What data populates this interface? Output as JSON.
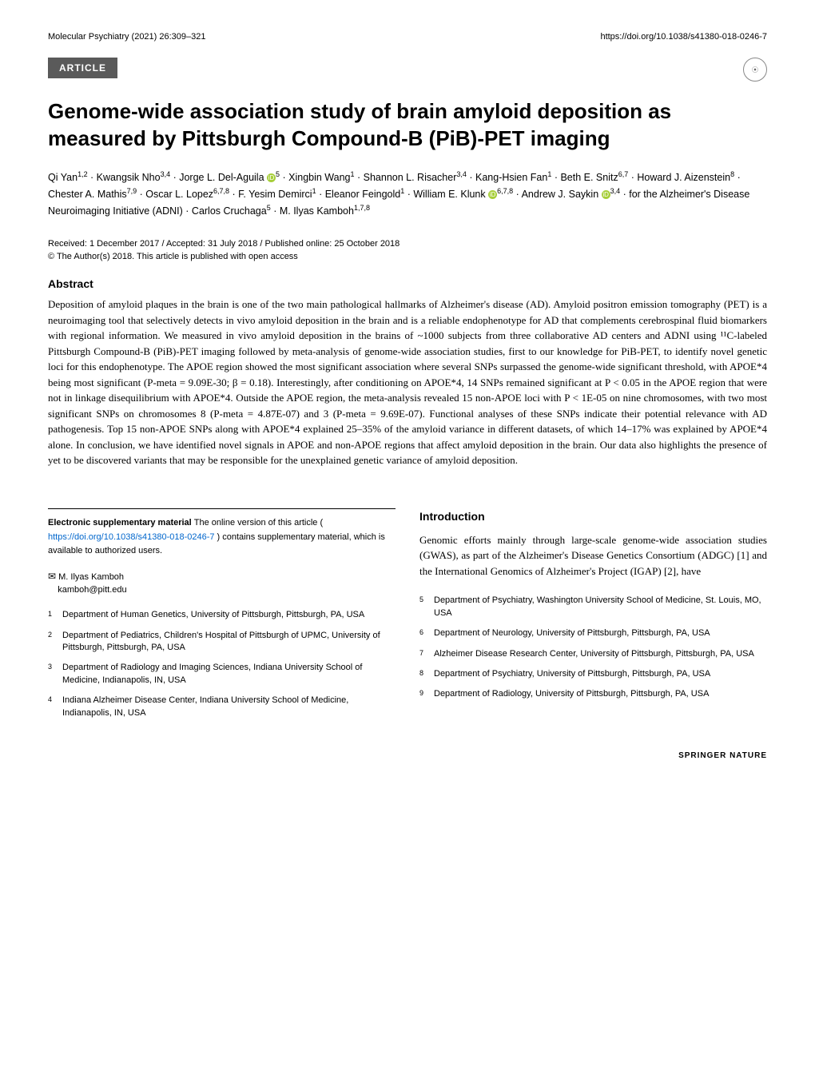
{
  "header": {
    "journal": "Molecular Psychiatry (2021) 26:309–321",
    "doi": "https://doi.org/10.1038/s41380-018-0246-7"
  },
  "article_label": "ARTICLE",
  "check_badge": "Check for updates",
  "title": "Genome-wide association study of brain amyloid deposition as measured by Pittsburgh Compound-B (PiB)-PET imaging",
  "authors_html": "Qi Yan<sup>1,2</sup> · Kwangsik Nho<sup>3,4</sup> · Jorge L. Del-Aguila ⓘ<sup>5</sup> · Xingbin Wang<sup>1</sup> · Shannon L. Risacher<sup>3,4</sup> · Kang-Hsien Fan<sup>1</sup> · Beth E. Snitz<sup>6,7</sup> · Howard J. Aizenstein<sup>8</sup> · Chester A. Mathis<sup>7,9</sup> · Oscar L. Lopez<sup>6,7,8</sup> · F. Yesim Demirci<sup>1</sup> · Eleanor Feingold<sup>1</sup> · William E. Klunk ⓘ<sup>6,7,8</sup> · Andrew J. Saykin ⓘ<sup>3,4</sup> · for the Alzheimer's Disease Neuroimaging Initiative (ADNI) · Carlos Cruchaga<sup>5</sup> · M. Ilyas Kamboh<sup>1,7,8</sup>",
  "received": "Received: 1 December 2017 / Accepted: 31 July 2018 / Published online: 25 October 2018",
  "copyright": "© The Author(s) 2018. This article is published with open access",
  "abstract_heading": "Abstract",
  "abstract": "Deposition of amyloid plaques in the brain is one of the two main pathological hallmarks of Alzheimer's disease (AD). Amyloid positron emission tomography (PET) is a neuroimaging tool that selectively detects in vivo amyloid deposition in the brain and is a reliable endophenotype for AD that complements cerebrospinal fluid biomarkers with regional information. We measured in vivo amyloid deposition in the brains of ~1000 subjects from three collaborative AD centers and ADNI using ¹¹C-labeled Pittsburgh Compound-B (PiB)-PET imaging followed by meta-analysis of genome-wide association studies, first to our knowledge for PiB-PET, to identify novel genetic loci for this endophenotype. The APOE region showed the most significant association where several SNPs surpassed the genome-wide significant threshold, with APOE*4 being most significant (P-meta = 9.09E-30; β = 0.18). Interestingly, after conditioning on APOE*4, 14 SNPs remained significant at P < 0.05 in the APOE region that were not in linkage disequilibrium with APOE*4. Outside the APOE region, the meta-analysis revealed 15 non-APOE loci with P < 1E-05 on nine chromosomes, with two most significant SNPs on chromosomes 8 (P-meta = 4.87E-07) and 3 (P-meta = 9.69E-07). Functional analyses of these SNPs indicate their potential relevance with AD pathogenesis. Top 15 non-APOE SNPs along with APOE*4 explained 25–35% of the amyloid variance in different datasets, of which 14–17% was explained by APOE*4 alone. In conclusion, we have identified novel signals in APOE and non-APOE regions that affect amyloid deposition in the brain. Our data also highlights the presence of yet to be discovered variants that may be responsible for the unexplained genetic variance of amyloid deposition.",
  "intro_heading": "Introduction",
  "intro_text": "Genomic efforts mainly through large-scale genome-wide association studies (GWAS), as part of the Alzheimer's Disease Genetics Consortium (ADGC) [1] and the International Genomics of Alzheimer's Project (IGAP) [2], have",
  "supp_heading": "Electronic supplementary material",
  "supp_text": " The online version of this article (",
  "supp_link": "https://doi.org/10.1038/s41380-018-0246-7",
  "supp_text2": ") contains supplementary material, which is available to authorized users.",
  "corr_name": "M. Ilyas Kamboh",
  "corr_email": "kamboh@pitt.edu",
  "affiliations": [
    {
      "num": "1",
      "text": "Department of Human Genetics, University of Pittsburgh, Pittsburgh, PA, USA"
    },
    {
      "num": "2",
      "text": "Department of Pediatrics, Children's Hospital of Pittsburgh of UPMC, University of Pittsburgh, Pittsburgh, PA, USA"
    },
    {
      "num": "3",
      "text": "Department of Radiology and Imaging Sciences, Indiana University School of Medicine, Indianapolis, IN, USA"
    },
    {
      "num": "4",
      "text": "Indiana Alzheimer Disease Center, Indiana University School of Medicine, Indianapolis, IN, USA"
    },
    {
      "num": "5",
      "text": "Department of Psychiatry, Washington University School of Medicine, St. Louis, MO, USA"
    },
    {
      "num": "6",
      "text": "Department of Neurology, University of Pittsburgh, Pittsburgh, PA, USA"
    },
    {
      "num": "7",
      "text": "Alzheimer Disease Research Center, University of Pittsburgh, Pittsburgh, PA, USA"
    },
    {
      "num": "8",
      "text": "Department of Psychiatry, University of Pittsburgh, Pittsburgh, PA, USA"
    },
    {
      "num": "9",
      "text": "Department of Radiology, University of Pittsburgh, Pittsburgh, PA, USA"
    }
  ],
  "footer_brand": "SPRINGER NATURE"
}
